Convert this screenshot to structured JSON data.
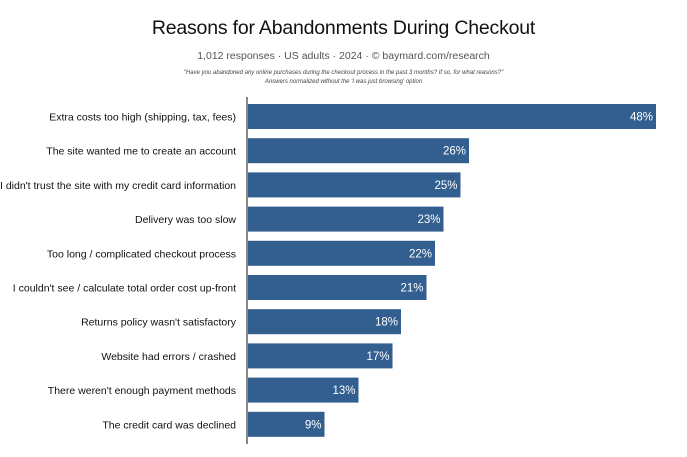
{
  "chart_data": {
    "type": "bar",
    "orientation": "horizontal",
    "title": "Reasons for Abandonments During Checkout",
    "subtitle": "1,012 responses  ·  US adults  ·  2024  ·  ©  baymard.com/research",
    "notes": [
      "\"Have you abandoned any online purchases during the checkout process in the past 3 months? If so, for what reasons?\"",
      "Answers normalized without the 'I was just browsing' option"
    ],
    "categories": [
      "Extra costs too high (shipping, tax, fees)",
      "The site wanted me to create an account",
      "I didn't trust the site with my credit card information",
      "Delivery was too slow",
      "Too long / complicated checkout process",
      "I couldn't see / calculate total order cost up-front",
      "Returns policy wasn't satisfactory",
      "Website had errors / crashed",
      "There weren't enough payment methods",
      "The credit card was declined"
    ],
    "values": [
      48,
      26,
      25,
      23,
      22,
      21,
      18,
      17,
      13,
      9
    ],
    "value_labels": [
      "48%",
      "26%",
      "25%",
      "23%",
      "22%",
      "21%",
      "18%",
      "17%",
      "13%",
      "9%"
    ],
    "xlim": [
      0,
      48
    ],
    "grid": false,
    "legend": "none",
    "bar_color": "#325f8f",
    "axis_color": "#111111"
  }
}
